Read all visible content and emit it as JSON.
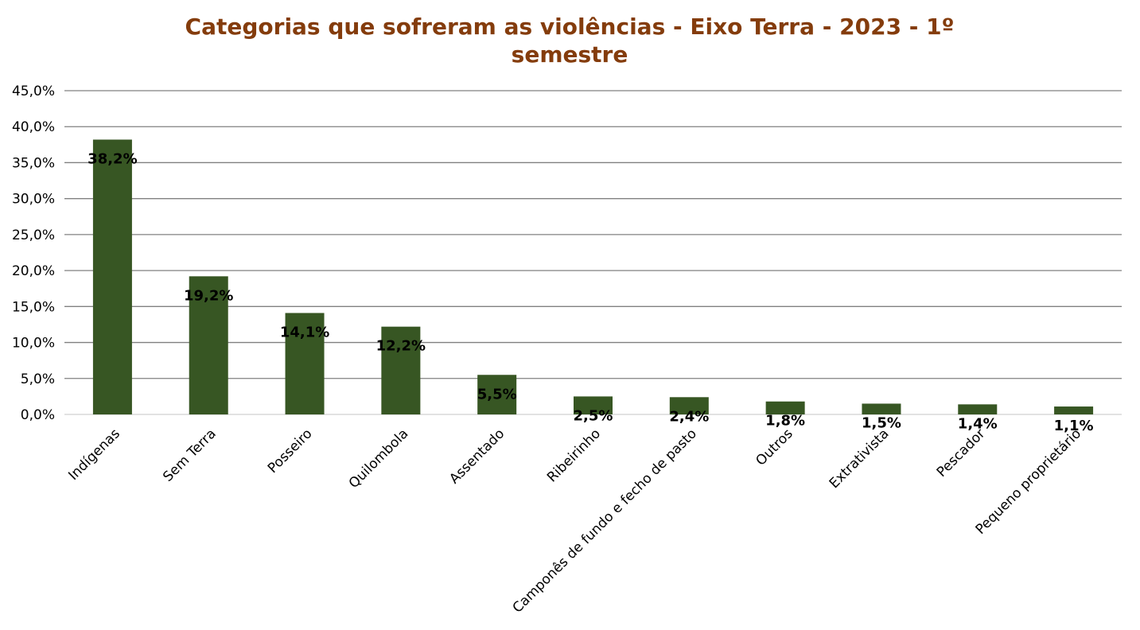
{
  "chart_data": {
    "type": "bar",
    "title_line1": "Categorias que sofreram as violências - Eixo Terra - 2023 - 1º",
    "title_line2": "semestre",
    "xlabel": "",
    "ylabel": "",
    "categories": [
      "Indígenas",
      "Sem Terra",
      "Posseiro",
      "Quilombola",
      "Assentado",
      "Ribeirinho",
      "Camponês de fundo e fecho de pasto",
      "Outros",
      "Extrativista",
      "Pescador",
      "Pequeno proprietário"
    ],
    "values": [
      38.2,
      19.2,
      14.1,
      12.2,
      5.5,
      2.5,
      2.4,
      1.8,
      1.5,
      1.4,
      1.1
    ],
    "data_labels": [
      "38,2%",
      "19,2%",
      "14,1%",
      "12,2%",
      "5,5%",
      "2,5%",
      "2,4%",
      "1,8%",
      "1,5%",
      "1,4%",
      "1,1%"
    ],
    "yticks": [
      0,
      5,
      10,
      15,
      20,
      25,
      30,
      35,
      40,
      45
    ],
    "ytick_labels": [
      "0,0%",
      "5,0%",
      "10,0%",
      "15,0%",
      "20,0%",
      "25,0%",
      "30,0%",
      "35,0%",
      "40,0%",
      "45,0%"
    ],
    "ylim": [
      0,
      45
    ],
    "grid": true,
    "legend": "none",
    "colors": {
      "bar": "#375623",
      "title": "#843C0C",
      "grid": "#808080",
      "axis": "#D9D9D9"
    }
  }
}
